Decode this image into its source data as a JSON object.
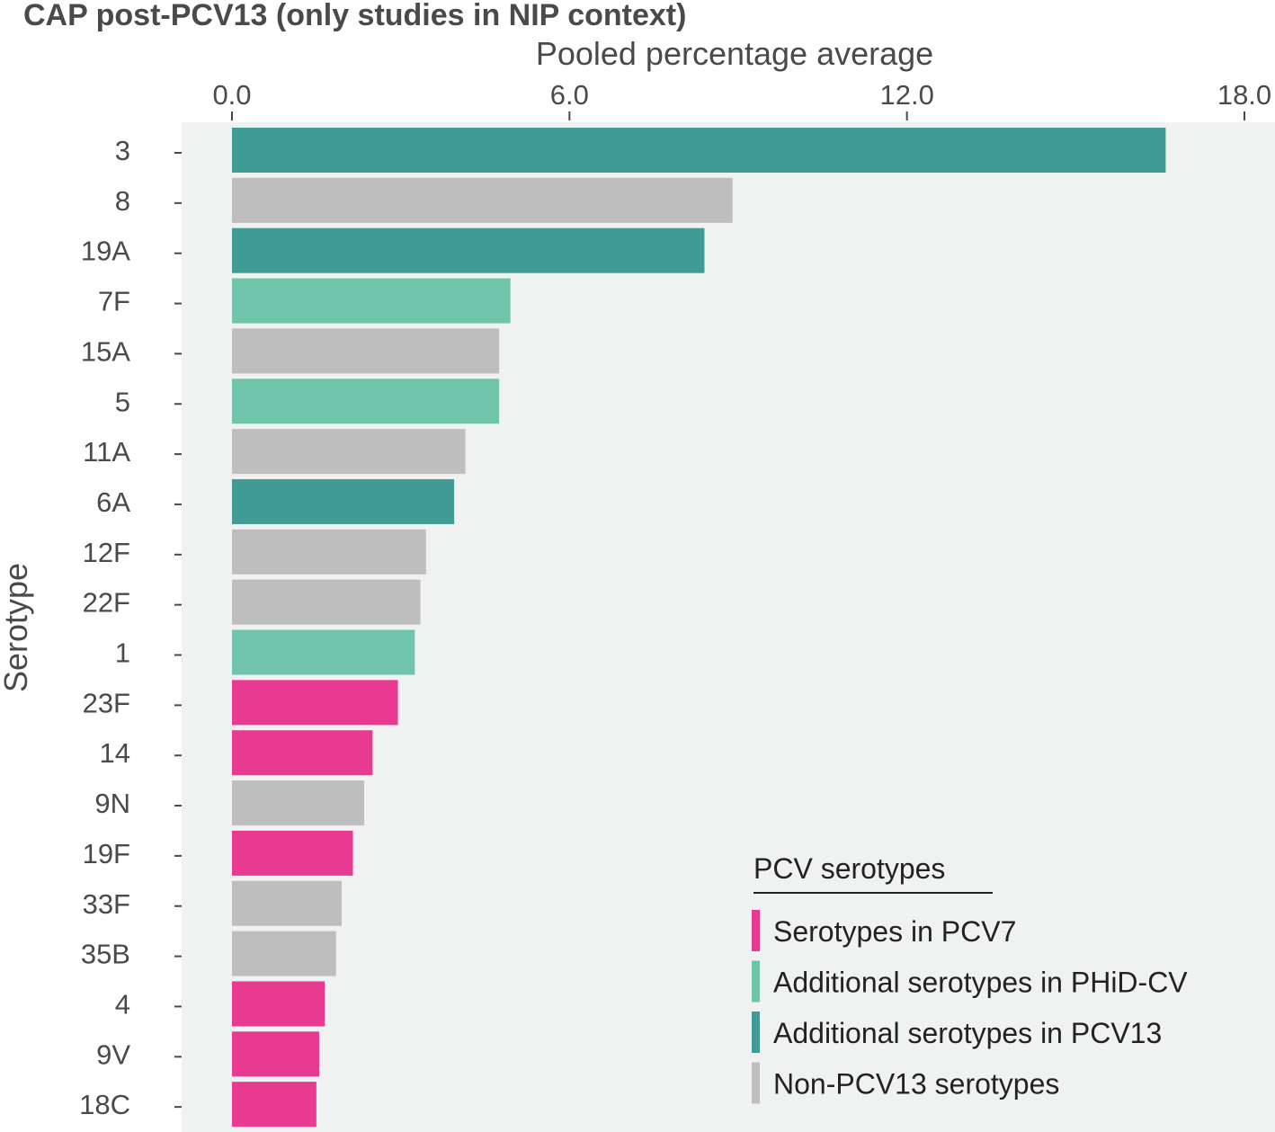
{
  "chart_data": {
    "type": "bar",
    "orientation": "horizontal",
    "title": "CAP post-PCV13 (only studies in NIP context)",
    "xlabel": "Pooled percentage average",
    "ylabel": "Serotype",
    "xlim": [
      0,
      18
    ],
    "xticks": [
      "0.0",
      "6.0",
      "12.0",
      "18.0"
    ],
    "xtick_values": [
      0,
      6,
      12,
      18
    ],
    "categories": [
      "3",
      "8",
      "19A",
      "7F",
      "15A",
      "5",
      "11A",
      "6A",
      "12F",
      "22F",
      "1",
      "23F",
      "14",
      "9N",
      "19F",
      "33F",
      "35B",
      "4",
      "9V",
      "18C"
    ],
    "values": [
      16.6,
      8.9,
      8.4,
      4.95,
      4.75,
      4.75,
      4.15,
      3.95,
      3.45,
      3.35,
      3.25,
      2.95,
      2.5,
      2.35,
      2.15,
      1.95,
      1.85,
      1.65,
      1.55,
      1.5
    ],
    "groups": [
      "PCV13",
      "Non-PCV13",
      "PCV13",
      "PHiD-CV",
      "Non-PCV13",
      "PHiD-CV",
      "Non-PCV13",
      "PCV13",
      "Non-PCV13",
      "Non-PCV13",
      "PHiD-CV",
      "PCV7",
      "PCV7",
      "Non-PCV13",
      "PCV7",
      "Non-PCV13",
      "Non-PCV13",
      "PCV7",
      "PCV7",
      "PCV7"
    ],
    "legend": {
      "title": "PCV serotypes",
      "position": "bottom-right",
      "items": [
        {
          "key": "PCV7",
          "label": "Serotypes in PCV7",
          "color": "#e83a91"
        },
        {
          "key": "PHiD-CV",
          "label": "Additional serotypes in PHiD-CV",
          "color": "#6fc4a9"
        },
        {
          "key": "PCV13",
          "label": "Additional serotypes in PCV13",
          "color": "#409b94"
        },
        {
          "key": "Non-PCV13",
          "label": "Non-PCV13 serotypes",
          "color": "#bebebe"
        }
      ]
    },
    "panel_background": "#f0f1f1",
    "grid": false
  }
}
